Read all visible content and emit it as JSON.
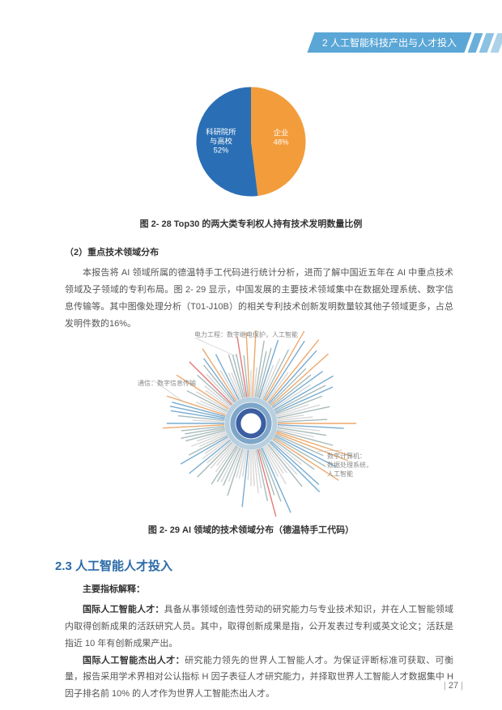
{
  "header": {
    "label": "2 人工智能科技产出与人才投入"
  },
  "pie": {
    "caption": "图 2- 28  Top30 的两大类专利权人持有技术发明数量比例",
    "slices": [
      {
        "label": "企业",
        "pct": "48%",
        "value": 48,
        "color": "#f39c3b"
      },
      {
        "label": "科研院所\n与高校",
        "pct": "52%",
        "value": 52,
        "color": "#2a6fb5"
      }
    ],
    "label_fontsize": 10,
    "radius": 72
  },
  "section1": {
    "subhead": "（2）重点技术领域分布",
    "para": "本报告将 AI 领域所属的德温特手工代码进行统计分析，进而了解中国近五年在 AI 中重点技术领域及子领域的专利布局。图 2- 29 显示，中国发展的主要技术领域集中在数据处理系统、数字信息传输等。其中图像处理分析（T01-J10B）的相关专利技术创新发明数量较其他子领域更多，占总发明件数的16%。"
  },
  "radial": {
    "caption": "图 2- 29  AI 领域的技术领域分布（德温特手工代码）",
    "labels": {
      "top": "电力工程：数字继电保护，人工智能",
      "left": "通信：数字信息传输",
      "right": "数字计算机：\n数据处理系统，\n人工智能"
    },
    "ring_colors": [
      "#3b5ea0",
      "#7ea6c9",
      "#b8cfdf"
    ],
    "spoke_count": 120,
    "center_color": "#ffffff",
    "accent_colors": [
      "#e78b3a",
      "#d94c4c",
      "#4a8fc2",
      "#8aa3a3",
      "#c9c9c9"
    ],
    "background": "#ffffff"
  },
  "section_title": "2.3 人工智能人才投入",
  "section2": {
    "subhead": "主要指标解释：",
    "p1_term": "国际人工智能人才：",
    "p1": "具备从事领域创造性劳动的研究能力与专业技术知识，并在人工智能领域内取得创新成果的活跃研究人员。其中，取得创新成果是指，公开发表过专利或英文论文；活跃是指近 10 年有创新成果产出。",
    "p2_term": "国际人工智能杰出人才：",
    "p2": "研究能力领先的世界人工智能人才。为保证评断标准可获取、可衡量，报告采用学术界相对公认指标 H 因子表征人才研究能力，并择取世界人工智能人才数据集中 H 因子排名前 10% 的人才作为世界人工智能杰出人才。"
  },
  "page_number": "27"
}
